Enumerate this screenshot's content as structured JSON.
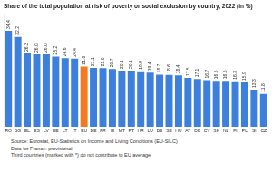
{
  "chart_data": {
    "type": "bar",
    "title": "Share of the total population at risk of poverty or social exclusion by country, 2022 (in %)",
    "categories": [
      "RO",
      "BG",
      "EL",
      "ES",
      "LV",
      "EE",
      "LT",
      "IT",
      "EU",
      "DE",
      "FR",
      "IE",
      "MT",
      "PT",
      "HR",
      "LU",
      "BE",
      "SE",
      "HU",
      "AT",
      "DK",
      "CY",
      "SK",
      "NL",
      "FI",
      "PL",
      "SI",
      "CZ"
    ],
    "values": [
      34.4,
      32.2,
      26.3,
      26.0,
      26.0,
      25.2,
      24.6,
      24.4,
      21.6,
      21.1,
      21.0,
      20.7,
      20.1,
      20.1,
      19.9,
      19.4,
      18.7,
      18.6,
      18.4,
      17.5,
      17.1,
      16.7,
      16.5,
      16.5,
      16.3,
      15.9,
      13.3,
      11.8
    ],
    "value_labels": [
      "34.4",
      "32.2",
      "26.3",
      "26.0",
      "26.0",
      "25.2",
      "24.6",
      "24.4",
      "21.6",
      "21.1",
      "21.0",
      "20.7",
      "20.1",
      "20.1",
      "19.9",
      "19.4",
      "18.7",
      "18.6",
      "18.4",
      "17.5",
      "17.1",
      "16.7",
      "16.5",
      "16.5",
      "16.3",
      "15.9",
      "13.3",
      "11.8"
    ],
    "colors": [
      "#3d7fdc",
      "#3d7fdc",
      "#3d7fdc",
      "#3d7fdc",
      "#3d7fdc",
      "#3d7fdc",
      "#3d7fdc",
      "#3d7fdc",
      "#f47a20",
      "#3d7fdc",
      "#3d7fdc",
      "#3d7fdc",
      "#3d7fdc",
      "#3d7fdc",
      "#3d7fdc",
      "#3d7fdc",
      "#3d7fdc",
      "#3d7fdc",
      "#3d7fdc",
      "#3d7fdc",
      "#3d7fdc",
      "#3d7fdc",
      "#3d7fdc",
      "#3d7fdc",
      "#3d7fdc",
      "#3d7fdc",
      "#3d7fdc",
      "#3d7fdc"
    ],
    "ylim": [
      0,
      40
    ],
    "grid": false,
    "data_labels": true,
    "tick_labels": "x",
    "annotations": [
      "Source: Eurostat, EU-Statistics on Income and Living Conditions (EU-SILC)",
      "Data for France: provisional.",
      "Third countries (marked with *) do not contribute to EU average."
    ]
  }
}
